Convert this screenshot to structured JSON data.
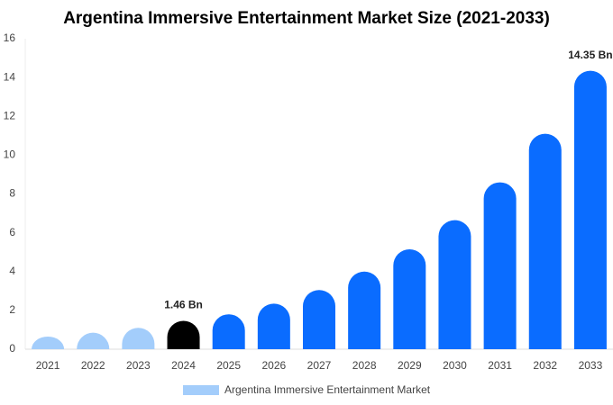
{
  "chart_data": {
    "type": "bar",
    "title": "Argentina Immersive Entertainment Market Size (2021-2033)",
    "categories": [
      "2021",
      "2022",
      "2023",
      "2024",
      "2025",
      "2026",
      "2027",
      "2028",
      "2029",
      "2030",
      "2031",
      "2032",
      "2033"
    ],
    "series": [
      {
        "name": "Argentina Immersive Entertainment Market",
        "color": "#a3cdfb",
        "colors": [
          "#a3cdfb",
          "#a3cdfb",
          "#a3cdfb",
          "#000000",
          "#0a6cff",
          "#0a6cff",
          "#0a6cff",
          "#0a6cff",
          "#0a6cff",
          "#0a6cff",
          "#0a6cff",
          "#0a6cff",
          "#0a6cff"
        ],
        "values": [
          0.65,
          0.85,
          1.1,
          1.46,
          1.8,
          2.35,
          3.05,
          4.0,
          5.15,
          6.65,
          8.6,
          11.1,
          14.35
        ],
        "value_labels": [
          null,
          null,
          null,
          "1.46 Bn",
          null,
          null,
          null,
          null,
          null,
          null,
          null,
          null,
          "14.35 Bn"
        ]
      }
    ],
    "ylim": [
      0,
      16
    ],
    "yticks": [
      0,
      2,
      4,
      6,
      8,
      10,
      12,
      14,
      16
    ],
    "grid": false,
    "legend": "bottom"
  }
}
